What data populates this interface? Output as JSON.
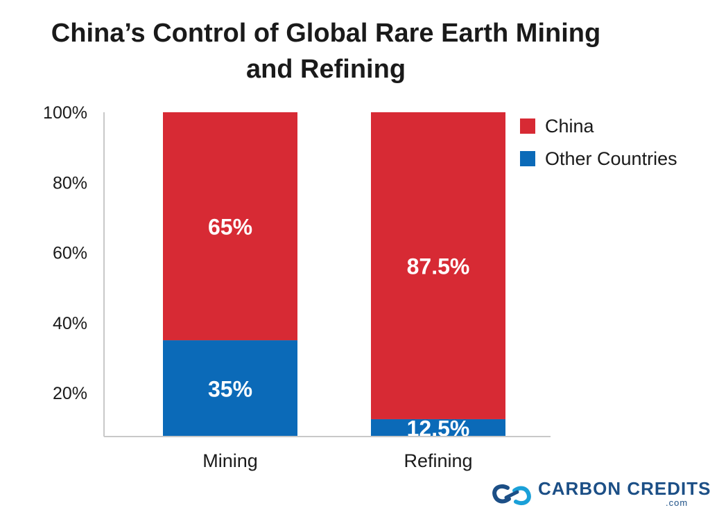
{
  "chart_data": {
    "type": "stacked-bar",
    "title": "China’s Control of Global Rare Earth Mining and Refining",
    "categories": [
      "Mining",
      "Refining"
    ],
    "series": [
      {
        "name": "Other Countries",
        "values": [
          35,
          12.5
        ],
        "labels": [
          "35%",
          "12.5%"
        ],
        "color": "#0b6ab8"
      },
      {
        "name": "China",
        "values": [
          65,
          87.5
        ],
        "labels": [
          "65%",
          "87.5%"
        ],
        "color": "#d72a34"
      }
    ],
    "yticks": [
      "20%",
      "40%",
      "60%",
      "80%",
      "100%"
    ],
    "ytick_values": [
      20,
      40,
      60,
      80,
      100
    ],
    "ylim": [
      0,
      100
    ],
    "legend": {
      "position": "top-right",
      "items": [
        "China",
        "Other Countries"
      ]
    }
  },
  "branding": {
    "name": "CARBON CREDITS",
    "suffix": ".com",
    "icon": "chain-link-icon"
  }
}
